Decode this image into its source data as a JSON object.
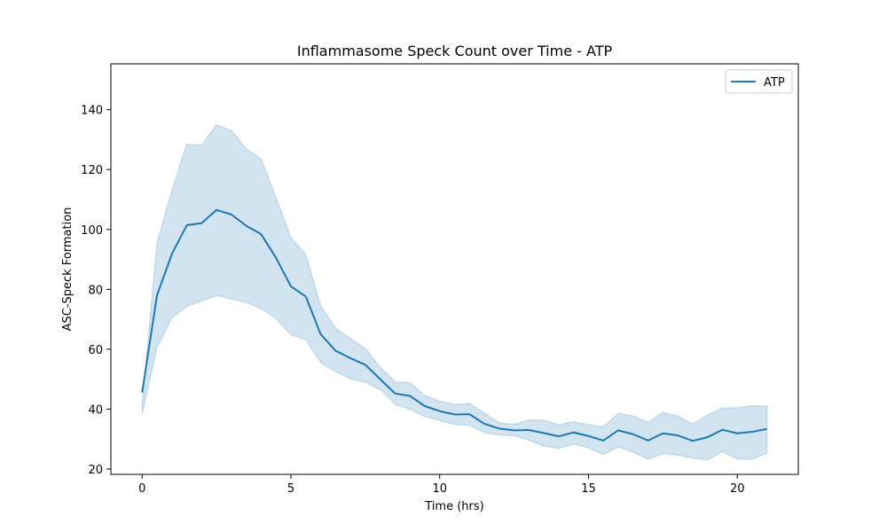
{
  "chart_data": {
    "type": "line",
    "title": "Inflammasome Speck Count over Time - ATP",
    "xlabel": "Time (hrs)",
    "ylabel": "ASC-Speck Formation",
    "xlim": [
      -1.05,
      22.05
    ],
    "ylim": [
      18.2,
      155.3
    ],
    "xticks": [
      0,
      5,
      10,
      15,
      20
    ],
    "yticks": [
      20,
      40,
      60,
      80,
      100,
      120,
      140
    ],
    "grid": false,
    "legend_position": "top-right",
    "colors": {
      "line": "#1f77b4",
      "band": "#1f77b4"
    },
    "series": [
      {
        "name": "ATP",
        "x": [
          0,
          0.5,
          1,
          1.5,
          2,
          2.5,
          3,
          3.5,
          4,
          4.5,
          5,
          5.5,
          6,
          6.5,
          7,
          7.5,
          8,
          8.5,
          9,
          9.5,
          10,
          10.5,
          11,
          11.5,
          12,
          12.5,
          13,
          13.5,
          14,
          14.5,
          15,
          15.5,
          16,
          16.5,
          17,
          17.5,
          18,
          18.5,
          19,
          19.5,
          20,
          20.5,
          21
        ],
        "y": [
          45.5,
          78.0,
          91.8,
          101.4,
          102.1,
          106.5,
          105.0,
          101.2,
          98.4,
          90.5,
          81.0,
          77.6,
          65.0,
          59.5,
          57.0,
          54.8,
          50.0,
          45.2,
          44.4,
          41.0,
          39.3,
          38.2,
          38.3,
          35.1,
          33.5,
          32.9,
          33.0,
          32.0,
          30.9,
          32.2,
          31.0,
          29.5,
          32.9,
          31.6,
          29.5,
          31.9,
          31.2,
          29.4,
          30.6,
          33.1,
          31.9,
          32.4,
          33.4
        ],
        "lower": [
          38.5,
          60.5,
          70.5,
          74.2,
          76.1,
          77.9,
          76.8,
          75.6,
          73.6,
          70.3,
          64.8,
          63.3,
          55.5,
          52.5,
          50.1,
          49.0,
          46.5,
          41.5,
          40.0,
          37.5,
          36.2,
          34.9,
          34.6,
          32.1,
          31.4,
          31.1,
          29.6,
          27.6,
          26.9,
          28.3,
          27.1,
          24.8,
          27.3,
          25.6,
          23.3,
          25.1,
          24.6,
          23.6,
          23.0,
          25.8,
          23.3,
          23.3,
          25.3
        ],
        "upper": [
          41.5,
          95.5,
          113.0,
          128.5,
          128.1,
          135.0,
          133.0,
          126.9,
          123.5,
          110.6,
          97.3,
          91.7,
          74.5,
          67.0,
          63.6,
          60.2,
          54.0,
          49.1,
          48.8,
          44.6,
          42.6,
          41.5,
          41.9,
          38.7,
          35.4,
          34.9,
          36.4,
          36.3,
          34.8,
          35.8,
          34.8,
          34.1,
          38.6,
          37.7,
          35.6,
          38.9,
          37.7,
          35.0,
          38.0,
          40.4,
          40.4,
          41.1,
          41.0
        ]
      }
    ]
  }
}
